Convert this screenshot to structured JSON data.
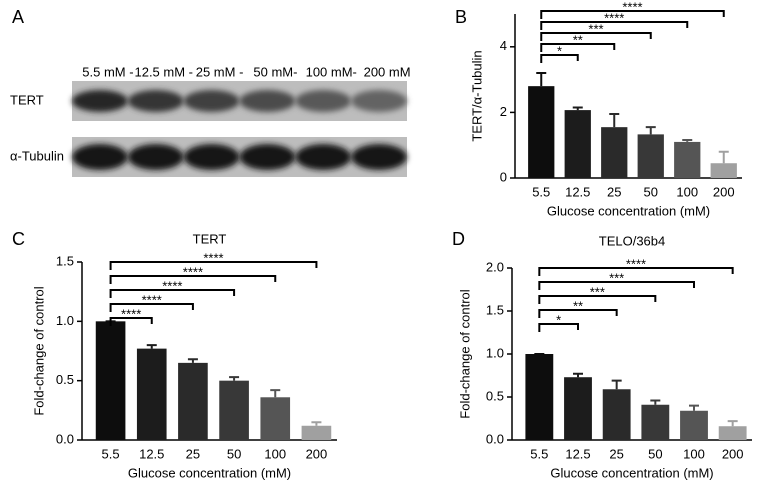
{
  "blot": {
    "panel_label": "A",
    "lanes": [
      "5.5 mM -",
      "12.5 mM -",
      "25 mM -",
      "50 mM-",
      "100 mM-",
      "200 mM"
    ],
    "rows": [
      "TERT",
      "α-Tubulin"
    ]
  },
  "chart_data": [
    {
      "type": "bar",
      "panel_label": "B",
      "y_label": "TERT/α-Tubulin",
      "x_label": "Glucose concentration (mM)",
      "categories": [
        "5.5",
        "12.5",
        "25",
        "50",
        "100",
        "200"
      ],
      "values": [
        2.8,
        2.07,
        1.55,
        1.33,
        1.1,
        0.45
      ],
      "errors": [
        0.4,
        0.08,
        0.4,
        0.22,
        0.06,
        0.35
      ],
      "significance": [
        null,
        "*",
        "**",
        "***",
        "****",
        "****"
      ],
      "colors": [
        "#0d0d0d",
        "#1c1c1c",
        "#2a2a2a",
        "#383838",
        "#555555",
        "#a0a0a0"
      ],
      "ylim": [
        0,
        5
      ],
      "yticks": [
        0,
        2,
        4
      ]
    },
    {
      "type": "bar",
      "panel_label": "C",
      "title": "TERT",
      "y_label": "Fold-change of control",
      "x_label": "Glucose concentration (mM)",
      "categories": [
        "5.5",
        "12.5",
        "25",
        "50",
        "100",
        "200"
      ],
      "values": [
        1.0,
        0.77,
        0.65,
        0.5,
        0.36,
        0.12
      ],
      "errors": [
        0,
        0.03,
        0.03,
        0.03,
        0.06,
        0.03
      ],
      "significance": [
        null,
        "****",
        "****",
        "****",
        "****",
        "****"
      ],
      "colors": [
        "#0d0d0d",
        "#1c1c1c",
        "#2a2a2a",
        "#383838",
        "#555555",
        "#a0a0a0"
      ],
      "ylim": [
        0,
        1.5
      ],
      "yticks": [
        {
          "value": 0,
          "label": "0.0"
        },
        0.5,
        {
          "value": 1,
          "label": "1.0"
        },
        1.5
      ]
    },
    {
      "type": "bar",
      "panel_label": "D",
      "title": "TELO/36b4",
      "y_label": "Fold-change of control",
      "x_label": "Glucose concentration (mM)",
      "categories": [
        "5.5",
        "12.5",
        "25",
        "50",
        "100",
        "200"
      ],
      "values": [
        1.0,
        0.73,
        0.59,
        0.41,
        0.34,
        0.16
      ],
      "errors": [
        0,
        0.04,
        0.1,
        0.05,
        0.06,
        0.06
      ],
      "significance": [
        null,
        "*",
        "**",
        "***",
        "***",
        "****"
      ],
      "colors": [
        "#0d0d0d",
        "#1c1c1c",
        "#2a2a2a",
        "#383838",
        "#555555",
        "#a0a0a0"
      ],
      "ylim": [
        0,
        2
      ],
      "yticks": [
        {
          "value": 0,
          "label": "0.0"
        },
        0.5,
        {
          "value": 1,
          "label": "1.0"
        },
        1.5,
        {
          "value": 2,
          "label": "2.0"
        }
      ]
    }
  ]
}
